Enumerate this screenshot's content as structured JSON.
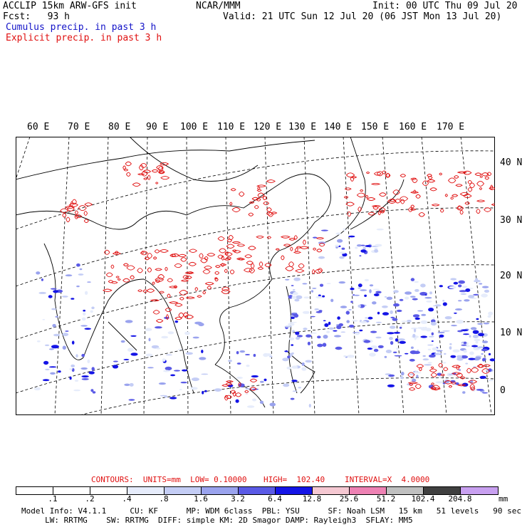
{
  "header": {
    "left_line1": "ACCLIP 15km ARW-GFS init",
    "center_line1": "NCAR/MMM",
    "right_line1": "Init: 00 UTC Thu 09 Jul 20",
    "left_line2": "Fcst:   93 h",
    "right_line2": "Valid: 21 UTC Sun 12 Jul 20 (06 JST Mon 13 Jul 20)",
    "legend_cumulus": "Cumulus precip. in past 3 h",
    "legend_explicit": "Explicit precip. in past 3 h"
  },
  "map": {
    "lon_labels": [
      "60 E",
      "70 E",
      "80 E",
      "90 E",
      "100 E",
      "110 E",
      "120 E",
      "130 E",
      "140 E",
      "150 E",
      "160 E",
      "170 E"
    ],
    "lat_labels": [
      "40 N",
      "30 N",
      "20 N",
      "10 N",
      "0"
    ]
  },
  "contours": {
    "units_label": "CONTOURS:  UNITS=mm  LOW= 0.10000",
    "high_label": "HIGH=  102.40",
    "interval_label": "INTERVAL=X  4.0000"
  },
  "colorbar": {
    "tick_labels": [
      ".1",
      ".2",
      ".4",
      ".8",
      "1.6",
      "3.2",
      "6.4",
      "12.8",
      "25.6",
      "51.2",
      "102.4",
      "204.8"
    ],
    "units": "mm",
    "colors": [
      "#ffffff",
      "#ffffff",
      "#ffffff",
      "#e6ecfb",
      "#c4cdf5",
      "#9aa3ee",
      "#5a5ae6",
      "#1414e6",
      "#f5c8d2",
      "#ee82b4",
      "#c0c0c0",
      "#404040",
      "#c8a0f0"
    ]
  },
  "footer": {
    "line1": "Model Info: V4.1.1     CU: KF      MP: WDM 6class  PBL: YSU      SF: Noah LSM   15 km   51 levels   90 sec",
    "line2": "     LW: RRTMG    SW: RRTMG  DIFF: simple KM: 2D Smagor DAMP: Rayleigh3  SFLAY: MM5"
  },
  "colors": {
    "explicit": "#e01010",
    "cumulus": "#1414c8",
    "light_blue": "#9aa3ee"
  }
}
